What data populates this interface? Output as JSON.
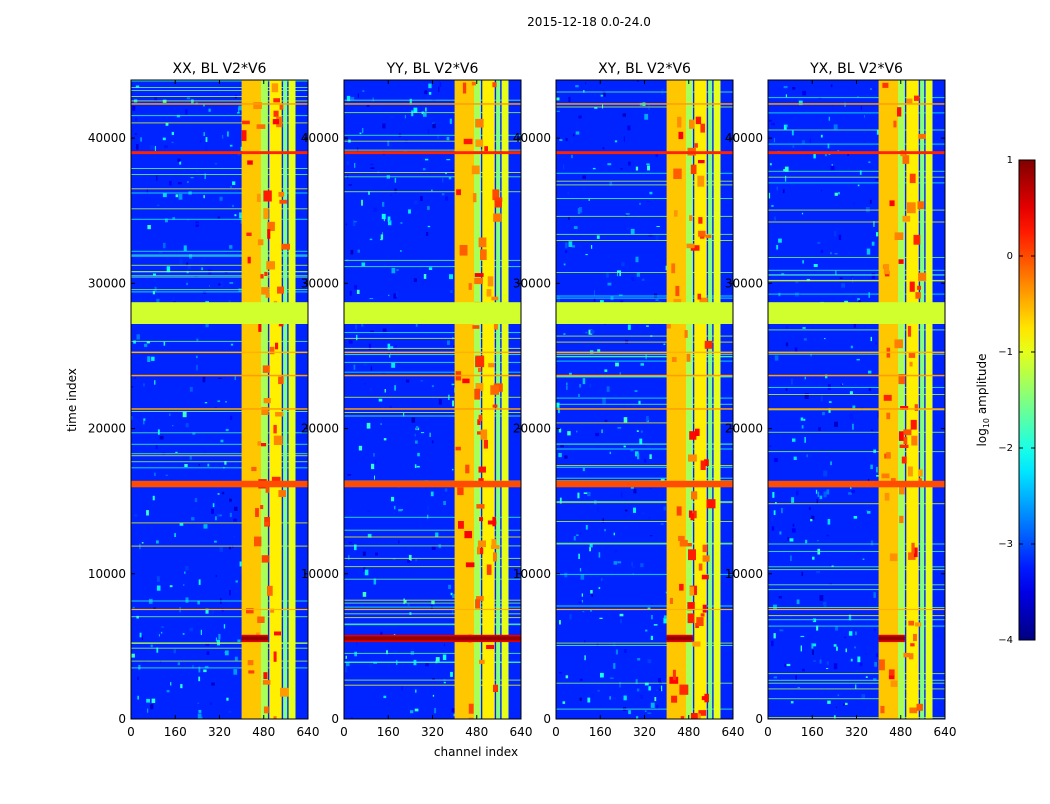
{
  "figure_title": "2015-12-18 0.0-24.0",
  "xlabel": "channel index",
  "ylabel": "time index",
  "chart_data": {
    "type": "heatmap",
    "title": "2015-12-18 0.0-24.0",
    "xlabel": "channel index",
    "ylabel": "time index",
    "xlim": [
      0,
      640
    ],
    "ylim": [
      0,
      44000
    ],
    "xticks": [
      0,
      160,
      320,
      480,
      640
    ],
    "xtick_labels": [
      "0",
      "160",
      "320",
      "480",
      "640"
    ],
    "yticks": [
      0,
      10000,
      20000,
      30000,
      40000
    ],
    "ytick_labels": [
      "0",
      "10000",
      "20000",
      "30000",
      "40000"
    ],
    "colormap": "jet",
    "panels": [
      {
        "title": "XX, BL V2*V6",
        "pol": "XX"
      },
      {
        "title": "YY, BL V2*V6",
        "pol": "YY"
      },
      {
        "title": "XY, BL V2*V6",
        "pol": "XY"
      },
      {
        "title": "YX, BL V2*V6",
        "pol": "YX"
      }
    ],
    "colorbar": {
      "label_prefix": "log",
      "label_sub": "10",
      "label_suffix": " amplitude",
      "range": [
        -4,
        1
      ],
      "ticks": [
        1,
        0,
        -1,
        -2,
        -3,
        -4
      ],
      "tick_labels": [
        "1",
        "0",
        "−1",
        "−2",
        "−3",
        "−4"
      ]
    },
    "features": {
      "background_log_amp": -3.2,
      "high_channel_bands": [
        [
          400,
          470,
          -0.6
        ],
        [
          470,
          495,
          -1.3
        ],
        [
          500,
          545,
          -0.8
        ],
        [
          550,
          565,
          -1.5
        ],
        [
          570,
          595,
          -1.0
        ]
      ],
      "flagged_rows": [
        [
          27200,
          28700,
          -1.1
        ]
      ],
      "orange_rows": [
        [
          15950,
          16400,
          0.0
        ],
        [
          38900,
          39100,
          0.2
        ],
        [
          21300,
          21400,
          -0.4
        ],
        [
          23600,
          23700,
          -0.4
        ],
        [
          25200,
          25300,
          -0.5
        ],
        [
          7500,
          7580,
          -0.5
        ],
        [
          42300,
          42400,
          -0.4
        ]
      ],
      "rfi_rows": [
        [
          5300,
          5800,
          0.5
        ]
      ]
    }
  }
}
